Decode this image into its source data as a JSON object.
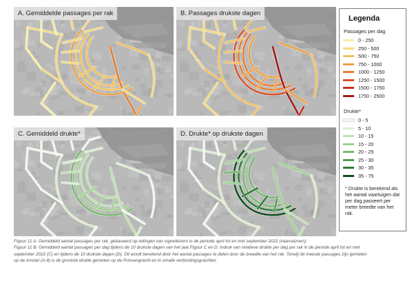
{
  "panels": {
    "a": {
      "title": "A. Gemiddelde passages per rak"
    },
    "b": {
      "title": "B. Passages drukste dagen"
    },
    "c": {
      "title": "C. Gemiddeld drukte*"
    },
    "d": {
      "title": "D. Drukte* op drukste dagen"
    }
  },
  "legend": {
    "title": "Legenda",
    "passages_heading": "Passages per dag",
    "passages": [
      {
        "label": "0 - 250",
        "color": "#f7efa5"
      },
      {
        "label": "250 - 500",
        "color": "#f5dc80"
      },
      {
        "label": "500 - 750",
        "color": "#f1c15e"
      },
      {
        "label": "750 - 1000",
        "color": "#eca145"
      },
      {
        "label": "1000 - 1250",
        "color": "#e57d33"
      },
      {
        "label": "1250 - 1500",
        "color": "#d9522a"
      },
      {
        "label": "1500 - 1750",
        "color": "#c4301f"
      },
      {
        "label": "1750 - 2500",
        "color": "#9e1b19"
      }
    ],
    "drukte_heading": "Drukte*",
    "drukte": [
      {
        "label": "0 - 5",
        "color": "#f4f8ee"
      },
      {
        "label": "5 - 10",
        "color": "#dcefd2"
      },
      {
        "label": "10 - 15",
        "color": "#bfe2b2"
      },
      {
        "label": "15 - 20",
        "color": "#9dd18f"
      },
      {
        "label": "20 - 25",
        "color": "#77bb6d"
      },
      {
        "label": "25 - 30",
        "color": "#4f9e4f"
      },
      {
        "label": "30 - 35",
        "color": "#2d7d38"
      },
      {
        "label": "35 - 75",
        "color": "#0f4f1f"
      }
    ],
    "note": "* Drukte is berekend als het aantal vaartuigen dat per dag passeert per meter breedte van het rak."
  },
  "caption": {
    "line1": "Figuur 11 A. Gemiddeld aantal passages per rak, gebaseerd op tellingen van vignetlezers in de periode april tot en met september 2022 (vaarseizoen).",
    "line2": "Figuur 11 B. Gemiddeld aantal passages per dag tijdens de 10 drukste dagen van het jaar.Figuur C en D. Indruk van relatieve drukte per dag per rak in de periode april tot en met",
    "line3": "september 2022 (C) en tijdens de 10 drukste dagen (D). Dit wordt berekend door het aantal passages te delen door de breedte van het rak. Terwijl de meeste passages zijn gemeten",
    "line4": "op de Amstel (A-8) is de grootste drukte gemeten op de Prinsengracht en in smalle verbindingsgrachten."
  }
}
